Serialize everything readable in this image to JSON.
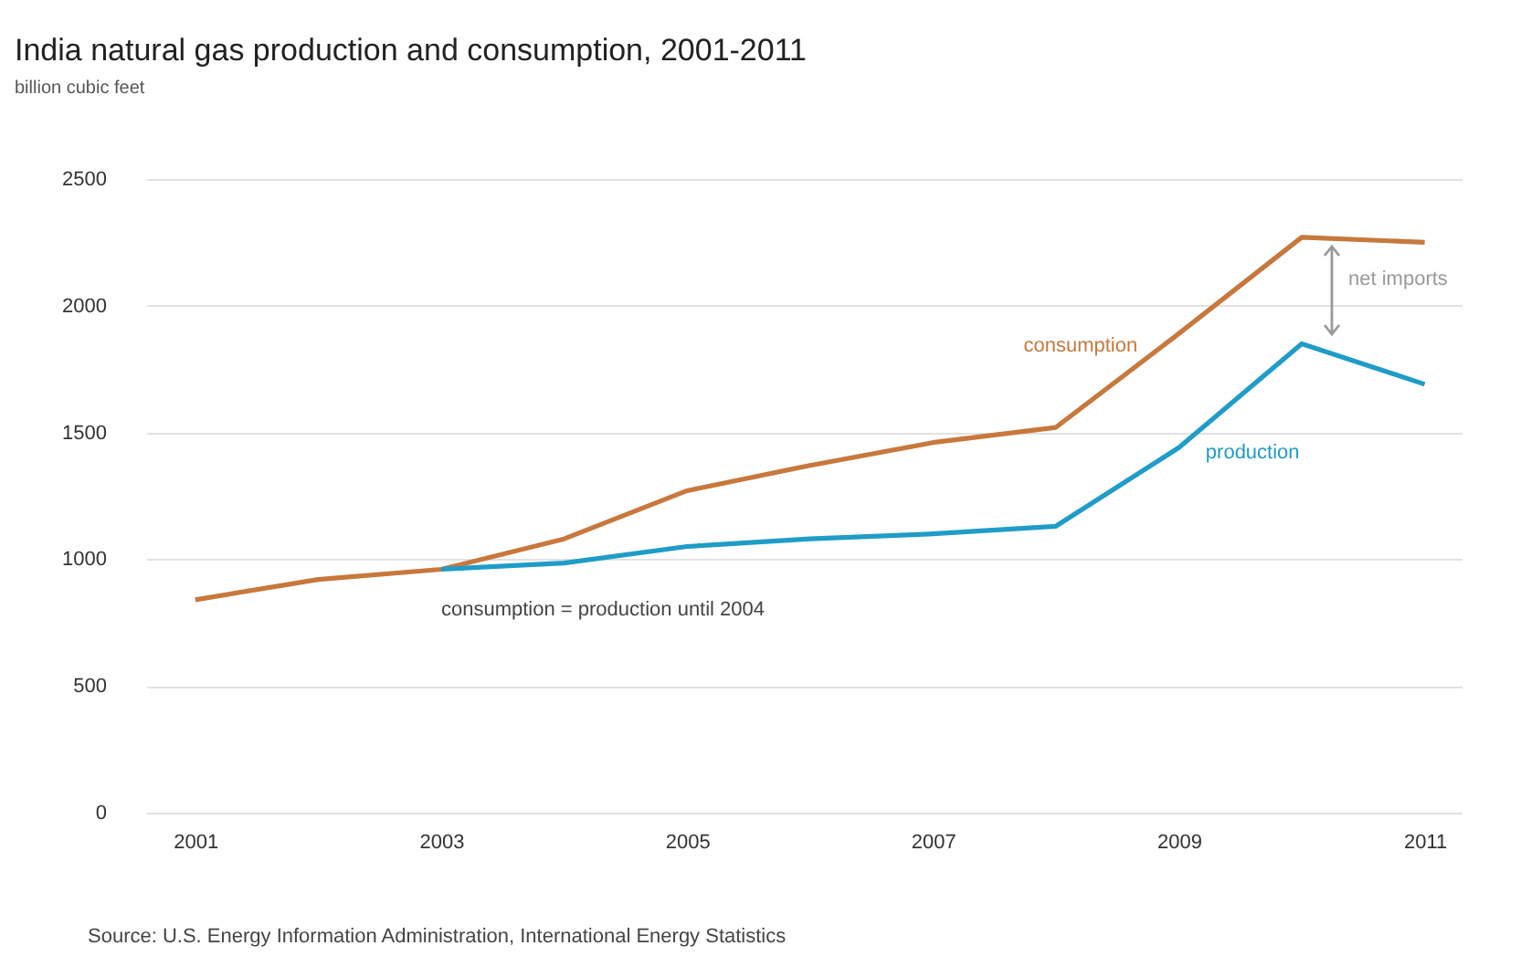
{
  "chart_data": {
    "type": "line",
    "title": "India natural gas production and consumption, 2001-2011",
    "subtitle": "billion cubic feet",
    "x": [
      2001,
      2002,
      2003,
      2004,
      2005,
      2006,
      2007,
      2008,
      2009,
      2010,
      2011
    ],
    "series": [
      {
        "name": "consumption",
        "color": "#c8783c",
        "values": [
          840,
          920,
          960,
          1080,
          1270,
          1370,
          1460,
          1520,
          1890,
          2270,
          2250
        ]
      },
      {
        "name": "production",
        "color": "#1f9cc8",
        "values": [
          null,
          null,
          960,
          985,
          1050,
          1080,
          1100,
          1130,
          1440,
          1850,
          1690
        ]
      }
    ],
    "xlim": [
      2000.6,
      2011.3
    ],
    "xticks": [
      2001,
      2003,
      2005,
      2007,
      2009,
      2011
    ],
    "ylim": [
      0,
      2500
    ],
    "yticks": [
      0,
      500,
      1000,
      1500,
      2000,
      2500
    ],
    "grid": "y",
    "legend": false,
    "marker": "none",
    "line_style": "solid",
    "annotations": [
      "net imports",
      "consumption = production until 2004",
      "Source: U.S. Energy Information Administration, International Energy Statistics"
    ]
  }
}
